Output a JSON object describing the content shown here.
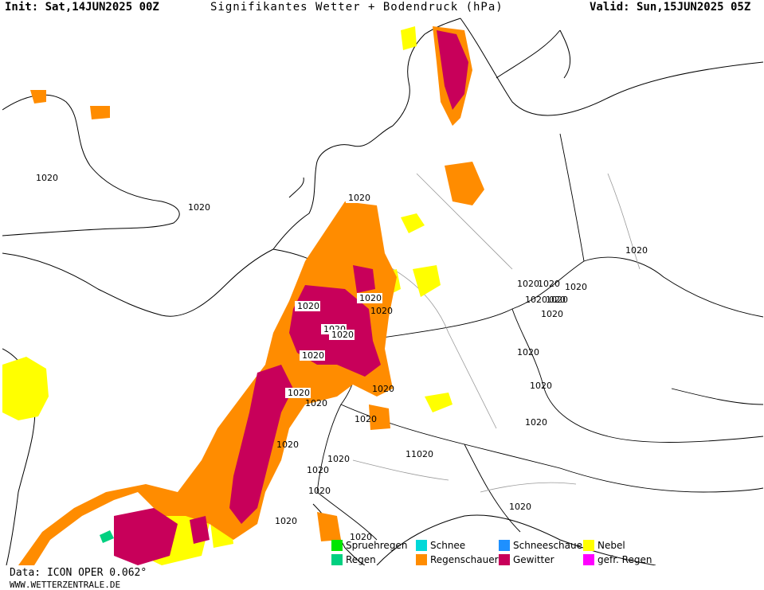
{
  "header": {
    "init": "Init: Sat,14JUN2025 00Z",
    "title": "Signifikantes Wetter + Bodendruck (hPa)",
    "valid": "Valid: Sun,15JUN2025 05Z"
  },
  "isobar_labels": [
    "1020",
    "1020",
    "1020",
    "1020",
    "1020",
    "1020",
    "1020",
    "1020",
    "1020",
    "1020",
    "1020",
    "1020",
    "020",
    "1020",
    "1020",
    "1020",
    "1020",
    "1020",
    "1020",
    "1020",
    "1020",
    "1020",
    "1020",
    "1020",
    "11020",
    "1020",
    "1020",
    "1020",
    "1020",
    "1020",
    "1020",
    "1020"
  ],
  "legend": {
    "items": [
      {
        "label": "Spruehregen",
        "color": "#00e600"
      },
      {
        "label": "Regen",
        "color": "#00d080"
      },
      {
        "label": "Schnee",
        "color": "#00d8d8"
      },
      {
        "label": "Regenschauer",
        "color": "#ff8c00"
      },
      {
        "label": "Schneeschauer",
        "color": "#1e90ff"
      },
      {
        "label": "Gewitter",
        "color": "#c8005a"
      },
      {
        "label": "Nebel",
        "color": "#ffff00"
      },
      {
        "label": "gefr. Regen",
        "color": "#ff00ff"
      }
    ]
  },
  "footer": {
    "data": "Data: ICON OPER 0.062°",
    "site": "WWW.WETTERZENTRALE.DE"
  }
}
